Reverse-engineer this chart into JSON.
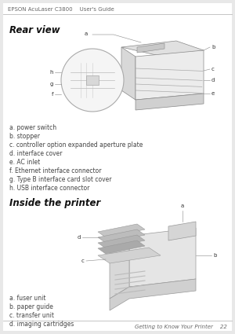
{
  "bg_color": "#e8e8e8",
  "page_bg": "#ffffff",
  "header_text": "EPSON AcuLaser C3800    User's Guide",
  "header_fontsize": 5.0,
  "header_color": "#666666",
  "footer_text": "Getting to Know Your Printer    22",
  "footer_fontsize": 5.0,
  "footer_color": "#666666",
  "section1_title": "Rear view",
  "section1_title_fontsize": 8.5,
  "section2_title": "Inside the printer",
  "section2_title_fontsize": 8.5,
  "rear_labels": [
    "a. power switch",
    "b. stopper",
    "c. controller option expanded aperture plate",
    "d. interface cover",
    "e. AC inlet",
    "f. Ethernet interface connector",
    "g. Type B interface card slot cover",
    "h. USB interface connector"
  ],
  "inside_labels": [
    "a. fuser unit",
    "b. paper guide",
    "c. transfer unit",
    "d. imaging cartridges"
  ],
  "label_fontsize": 5.5,
  "label_color": "#444444"
}
